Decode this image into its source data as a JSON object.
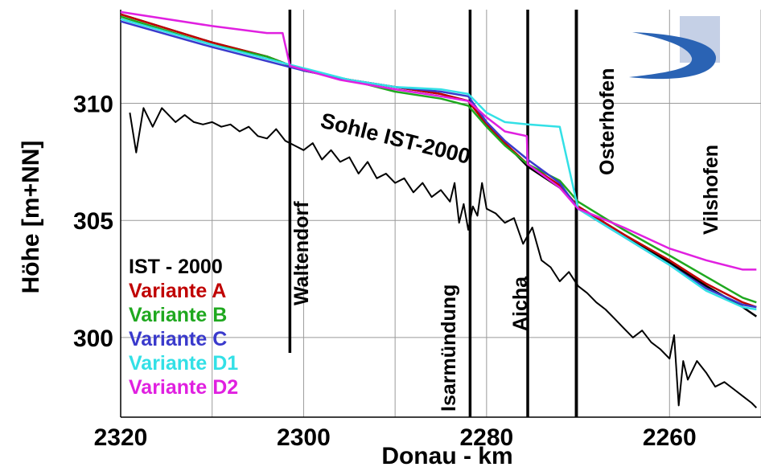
{
  "chart_data": {
    "type": "line",
    "xlabel": "Donau - km",
    "ylabel": "Höhe [m+NN]",
    "xlim": [
      2320,
      2250
    ],
    "ylim": [
      296.6,
      314.0
    ],
    "x_ticks": [
      2320,
      2300,
      2280,
      2260
    ],
    "y_ticks": [
      300,
      305,
      310
    ],
    "grid": true,
    "legend_position": "bottom-left",
    "annotation": {
      "text": "Sohle IST-2000"
    },
    "locations": [
      {
        "name": "Waltendorf",
        "km": 2301.5
      },
      {
        "name": "Isarmündung",
        "km": 2281.8
      },
      {
        "name": "Aicha",
        "km": 2275.5
      },
      {
        "name": "Osterhofen",
        "km": 2270.2
      },
      {
        "name": "Vilshofen",
        "km": 2249.4
      }
    ],
    "series": [
      {
        "name": "IST - 2000",
        "color": "#000000",
        "x": [
          2320,
          2310,
          2304,
          2300,
          2295,
          2290,
          2285,
          2282,
          2280,
          2278,
          2275.5,
          2272,
          2270,
          2265,
          2260,
          2256,
          2252,
          2250.5
        ],
        "y": [
          313.8,
          312.6,
          312.0,
          311.4,
          311.0,
          310.7,
          310.4,
          310.1,
          309.1,
          308.3,
          307.3,
          306.4,
          305.6,
          304.4,
          303.2,
          302.2,
          301.3,
          300.9
        ]
      },
      {
        "name": "Variante A",
        "color": "#c00000",
        "x": [
          2320,
          2310,
          2304,
          2300,
          2295,
          2290,
          2285,
          2282,
          2280,
          2278,
          2275.5,
          2272,
          2270,
          2265,
          2260,
          2256,
          2252,
          2250.5
        ],
        "y": [
          313.8,
          312.6,
          312.0,
          311.4,
          311.0,
          310.7,
          310.4,
          310.1,
          309.1,
          308.3,
          307.4,
          306.5,
          305.6,
          304.4,
          303.3,
          302.3,
          301.5,
          301.3
        ]
      },
      {
        "name": "Variante B",
        "color": "#1fa81f",
        "x": [
          2320,
          2310,
          2304,
          2300,
          2295,
          2290,
          2285,
          2282,
          2280,
          2278,
          2275.5,
          2272,
          2270,
          2265,
          2260,
          2256,
          2252,
          2250.5
        ],
        "y": [
          313.7,
          312.5,
          312.0,
          311.4,
          311.0,
          310.5,
          310.2,
          309.9,
          309.0,
          308.2,
          307.4,
          306.7,
          305.8,
          304.6,
          303.5,
          302.6,
          301.7,
          301.5
        ]
      },
      {
        "name": "Variante C",
        "color": "#3a3acc",
        "x": [
          2320,
          2310,
          2304,
          2300,
          2295,
          2290,
          2285,
          2282,
          2280,
          2278,
          2275.5,
          2272,
          2270,
          2265,
          2260,
          2256,
          2252,
          2250.5
        ],
        "y": [
          313.5,
          312.4,
          311.8,
          311.4,
          311.0,
          310.7,
          310.5,
          310.3,
          309.2,
          308.4,
          307.6,
          306.6,
          305.5,
          304.3,
          303.1,
          302.1,
          301.4,
          301.3
        ]
      },
      {
        "name": "Variante D1",
        "color": "#33e0e6",
        "x": [
          2320,
          2310,
          2304,
          2300,
          2295,
          2290,
          2285,
          2282,
          2280,
          2278,
          2275.5,
          2272,
          2270,
          2265,
          2260,
          2256,
          2252,
          2250.5
        ],
        "y": [
          313.6,
          312.5,
          311.9,
          311.5,
          311.0,
          310.7,
          310.6,
          310.4,
          309.6,
          309.2,
          309.1,
          309.0,
          305.5,
          304.3,
          303.1,
          302.0,
          301.3,
          301.2
        ]
      },
      {
        "name": "Variante D2",
        "color": "#e020e0",
        "x": [
          2320,
          2310,
          2304,
          2302.3,
          2301.5,
          2296,
          2290,
          2285,
          2282,
          2280,
          2278,
          2275.6,
          2275.5,
          2272,
          2270,
          2265,
          2260,
          2256,
          2252,
          2250.5
        ],
        "y": [
          313.9,
          313.3,
          313.0,
          313.0,
          311.6,
          311.0,
          310.6,
          310.3,
          310.1,
          309.4,
          308.8,
          308.6,
          307.4,
          306.4,
          305.5,
          304.7,
          303.8,
          303.3,
          302.9,
          302.9
        ]
      },
      {
        "name": "Sohle IST-2000",
        "color": "#000000",
        "x": [
          2319,
          2318.3,
          2317.5,
          2316.5,
          2315.5,
          2314,
          2313,
          2312,
          2311,
          2310,
          2309,
          2308,
          2307,
          2306,
          2305,
          2304,
          2303,
          2302,
          2301,
          2300,
          2299,
          2298,
          2297,
          2296,
          2295,
          2294,
          2293,
          2292,
          2291,
          2290,
          2289,
          2288,
          2287,
          2286,
          2285,
          2284,
          2283.5,
          2283,
          2282.5,
          2282,
          2281.5,
          2281,
          2280.5,
          2280,
          2279,
          2278,
          2277,
          2276,
          2275,
          2274,
          2273,
          2272,
          2271,
          2270,
          2269,
          2268,
          2267,
          2266,
          2265,
          2264,
          2263,
          2262,
          2261,
          2260,
          2259.5,
          2259,
          2258.5,
          2258,
          2257,
          2256,
          2255,
          2254,
          2253,
          2252,
          2251,
          2250.5
        ],
        "y": [
          309.6,
          307.9,
          309.8,
          309.0,
          309.8,
          309.2,
          309.5,
          309.2,
          309.1,
          309.2,
          309.0,
          309.1,
          308.8,
          309.0,
          308.6,
          308.5,
          308.9,
          308.4,
          308.2,
          308.0,
          308.3,
          307.6,
          308.0,
          307.5,
          307.7,
          307.0,
          307.5,
          306.8,
          307.0,
          306.6,
          306.8,
          306.2,
          306.6,
          306.0,
          306.3,
          305.8,
          306.6,
          304.9,
          305.7,
          304.6,
          305.6,
          305.2,
          306.6,
          305.5,
          305.3,
          304.9,
          305.1,
          304.0,
          304.7,
          303.3,
          303.0,
          302.4,
          302.8,
          302.2,
          301.9,
          301.5,
          301.2,
          300.8,
          300.4,
          300.0,
          300.3,
          299.8,
          299.5,
          299.1,
          300.1,
          297.1,
          299.0,
          298.2,
          299.0,
          298.5,
          297.9,
          298.1,
          297.8,
          297.5,
          297.2,
          297.0
        ]
      }
    ]
  }
}
